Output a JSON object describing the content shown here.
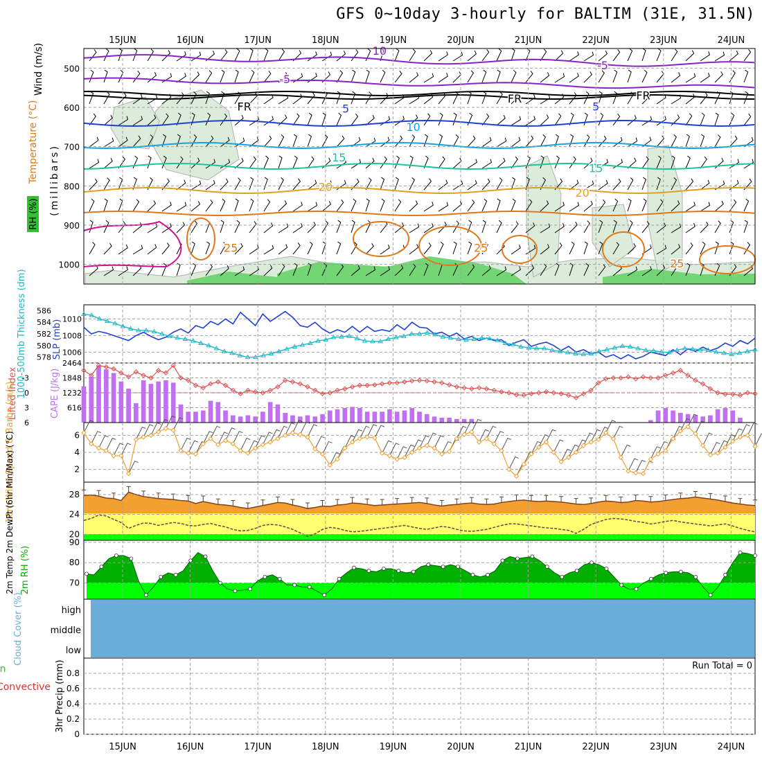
{
  "title": "GFS 0~10day 3-hourly for BALTIM (31E, 31.5N)",
  "date_labels": [
    "15JUN",
    "16JUN",
    "17JUN",
    "18JUN",
    "19JUN",
    "20JUN",
    "21JUN",
    "22JUN",
    "23JUN",
    "24JUN"
  ],
  "colors": {
    "rh_fill": "#7fbf7f",
    "temp_purple": "#8a22c2",
    "temp_blue": "#2040d0",
    "temp_cyan": "#1aa0e0",
    "temp_teal": "#1fc39b",
    "temp_gold": "#e0a020",
    "temp_orange": "#e07818",
    "temp_magenta": "#d01090",
    "slp": "#2040d0",
    "thickness": "#20b8c8",
    "lifted": "#e05050",
    "cape": "#c070f0",
    "wind10m": "#f0a030",
    "temp2m": "#f4a030",
    "dewpt": "#ffff70",
    "rh2m_dark": "#00b000",
    "rh2m_light": "#00ff00",
    "cloud": "#6aaed8",
    "green_label": "#30c030"
  },
  "chart_data": [
    {
      "type": "contour",
      "panel": "upper_air",
      "ylabel_wind": "Wind (m/s)",
      "ylabel_temp": "Temperature (°C)",
      "ylabel_rh": "RH (%)",
      "ylabel_pressure": "(millibars)",
      "y_ticks": [
        500,
        600,
        700,
        800,
        900,
        1000
      ],
      "ylim": [
        450,
        1050
      ],
      "contour_labels": [
        {
          "text": "10",
          "day": 3.8,
          "p": 458,
          "color": "temp_purple"
        },
        {
          "text": "-5",
          "day": 2.4,
          "p": 530,
          "color": "temp_purple"
        },
        {
          "text": "-5",
          "day": 7.1,
          "p": 495,
          "color": "temp_purple"
        },
        {
          "text": "FR",
          "day": 1.8,
          "p": 600,
          "color": "#000000"
        },
        {
          "text": "FR",
          "day": 5.8,
          "p": 580,
          "color": "#000000"
        },
        {
          "text": "FR",
          "day": 7.7,
          "p": 572,
          "color": "#000000"
        },
        {
          "text": "5",
          "day": 3.3,
          "p": 605,
          "color": "temp_blue"
        },
        {
          "text": "5",
          "day": 7.0,
          "p": 600,
          "color": "temp_blue"
        },
        {
          "text": "10",
          "day": 4.3,
          "p": 652,
          "color": "temp_cyan"
        },
        {
          "text": "15",
          "day": 3.2,
          "p": 730,
          "color": "temp_teal"
        },
        {
          "text": "15",
          "day": 7.0,
          "p": 757,
          "color": "temp_teal"
        },
        {
          "text": "20",
          "day": 3.0,
          "p": 805,
          "color": "temp_gold"
        },
        {
          "text": "20",
          "day": 6.8,
          "p": 820,
          "color": "temp_gold"
        },
        {
          "text": "25",
          "day": 1.6,
          "p": 960,
          "color": "temp_orange"
        },
        {
          "text": "25",
          "day": 5.3,
          "p": 960,
          "color": "temp_orange"
        },
        {
          "text": "25",
          "day": 8.2,
          "p": 1000,
          "color": "temp_orange"
        }
      ]
    },
    {
      "type": "line",
      "panel": "slp_thickness",
      "ylabel_thick": "1000-500mb Thickness (dm)",
      "ylabel_slp": "SLP (mb)",
      "thick_ticks": [
        578,
        580,
        582,
        584,
        586
      ],
      "slp_ticks": [
        1006,
        1008,
        1010
      ],
      "thick_lim": [
        577,
        587
      ],
      "slp_lim": [
        1004.7,
        1011.7
      ],
      "series": [
        {
          "key": "slp",
          "values": [
            1009.0,
            1008.2,
            1008.5,
            1008.3,
            1008.0,
            1007.7,
            1007.4,
            1008.0,
            1008.4,
            1007.9,
            1007.5,
            1007.8,
            1008.4,
            1008.8,
            1008.3,
            1009.2,
            1008.9,
            1009.7,
            1009.3,
            1010.0,
            1009.4,
            1010.8,
            1010.0,
            1009.2,
            1010.6,
            1009.7,
            1010.3,
            1010.9,
            1010.2,
            1009.2,
            1009.0,
            1009.6,
            1008.8,
            1008.3,
            1008.7,
            1008.4,
            1009.1,
            1008.4,
            1009.1,
            1008.5,
            1008.7,
            1008.5,
            1009.3,
            1008.7,
            1009.6,
            1009.0,
            1008.9,
            1008.2,
            1008.4,
            1007.9,
            1008.3,
            1007.6,
            1007.9,
            1007.4,
            1007.7,
            1007.4,
            1007.5,
            1006.8,
            1007.2,
            1007.5,
            1006.7,
            1007.0,
            1007.2,
            1006.8,
            1006.2,
            1006.7,
            1006.0,
            1006.3,
            1005.8,
            1006.0,
            1005.4,
            1005.7,
            1005.2,
            1005.7,
            1005.2,
            1005.5,
            1006.0,
            1005.8,
            1005.6,
            1006.3,
            1005.7,
            1006.4,
            1006.1,
            1006.6,
            1006.2,
            1006.5,
            1007.1,
            1006.7,
            1007.4,
            1007.0,
            1007.7
          ]
        },
        {
          "key": "thickness",
          "values": [
            585.4,
            585.2,
            584.6,
            584.2,
            583.8,
            583.3,
            582.9,
            582.6,
            582.6,
            582.4,
            582.0,
            581.6,
            581.3,
            581.1,
            580.8,
            580.4,
            580.0,
            579.5,
            579.0,
            578.7,
            578.3,
            578.0,
            578.0,
            578.3,
            578.6,
            579.0,
            579.4,
            579.8,
            580.1,
            580.4,
            580.8,
            581.0,
            581.4,
            581.5,
            581.6,
            581.2,
            580.8,
            580.7,
            580.7,
            581.1,
            581.4,
            581.6,
            582.0,
            582.0,
            582.2,
            581.9,
            581.5,
            581.3,
            581.1,
            581.0,
            581.1,
            581.3,
            581.2,
            580.9,
            580.4,
            580.2,
            579.8,
            579.6,
            579.5,
            579.5,
            579.2,
            579.0,
            578.8,
            578.6,
            578.5,
            578.6,
            579.0,
            579.3,
            579.6,
            579.9,
            579.8,
            579.5,
            579.2,
            579.1,
            578.9,
            578.8,
            579.2,
            579.5,
            579.4,
            579.3,
            579.2,
            578.9,
            578.7,
            578.5,
            578.7,
            579.0,
            579.3
          ]
        }
      ]
    },
    {
      "type": "bar",
      "panel": "lifted_cape",
      "ylabel_li": "Lifted Index",
      "ylabel_cape": "CAPE (J/kg)",
      "li_ticks": [
        "-3",
        "0",
        "3",
        "6"
      ],
      "cape_ticks": [
        616,
        1232,
        1848,
        2464
      ],
      "li_lim": [
        -6,
        6
      ],
      "cape_lim": [
        0,
        2464
      ],
      "cape_values": [
        1500,
        1900,
        2350,
        2200,
        2050,
        1700,
        1400,
        800,
        1750,
        1600,
        1700,
        1750,
        1650,
        750,
        450,
        450,
        500,
        900,
        850,
        500,
        300,
        250,
        300,
        250,
        450,
        850,
        750,
        400,
        300,
        250,
        300,
        250,
        350,
        500,
        550,
        600,
        650,
        600,
        450,
        450,
        450,
        550,
        450,
        500,
        600,
        450,
        350,
        250,
        200,
        200,
        150,
        150,
        150,
        0,
        0,
        0,
        0,
        0,
        0,
        0,
        0,
        0,
        0,
        0,
        0,
        0,
        0,
        0,
        0,
        0,
        0,
        0,
        0,
        0,
        0,
        0,
        100,
        500,
        600,
        500,
        400,
        350,
        300,
        250,
        300,
        550,
        600,
        500,
        200,
        0
      ],
      "li_values": [
        -4.5,
        -3.5,
        -5.5,
        -5.2,
        -4.8,
        -4.0,
        -3.2,
        -4.2,
        -3.5,
        -3.0,
        -4.5,
        -4.0,
        -5.5,
        -3.0,
        -2.5,
        -1.5,
        -1.0,
        -1.8,
        -2.2,
        -1.5,
        -0.5,
        0.2,
        -0.5,
        -0.2,
        0.0,
        -0.5,
        -1.2,
        -2.5,
        -2.2,
        -1.8,
        -1.2,
        -0.5,
        0.2,
        0.0,
        -0.5,
        -0.8,
        -1.2,
        -1.5,
        -1.5,
        -1.6,
        -1.8,
        -2.0,
        -2.0,
        -2.2,
        -2.4,
        -2.5,
        -2.4,
        -2.2,
        -2.0,
        -1.6,
        -1.2,
        -1.0,
        -0.8,
        -1.0,
        -0.8,
        -0.5,
        -0.2,
        0.0,
        0.4,
        0.5,
        0.2,
        0.0,
        -0.2,
        0.0,
        0.2,
        0.5,
        1.0,
        0.2,
        -0.5,
        -2.0,
        -2.8,
        -3.0,
        -3.0,
        -3.2,
        -2.8,
        -3.2,
        -3.0,
        -3.0,
        -3.5,
        -4.0,
        -4.5,
        -3.5,
        -2.5,
        -1.8,
        -0.8,
        0.0,
        0.3,
        0.3,
        0.5,
        0.0,
        0.2
      ]
    },
    {
      "type": "line",
      "panel": "wind10m",
      "ylabel": "10m Wind Speed & Barbs (m/s)",
      "y_ticks": [
        2,
        4,
        6
      ],
      "ylim": [
        0.5,
        7.5
      ],
      "values": [
        6.3,
        5.0,
        4.5,
        4.2,
        3.6,
        3.6,
        1.5,
        5.5,
        5.8,
        6.0,
        6.4,
        6.8,
        6.6,
        4.2,
        3.9,
        3.8,
        5.0,
        5.6,
        4.9,
        5.4,
        5.0,
        4.2,
        3.9,
        4.5,
        4.9,
        5.2,
        5.6,
        6.0,
        6.3,
        6.1,
        5.8,
        4.4,
        3.8,
        2.5,
        3.2,
        4.5,
        5.2,
        5.6,
        5.8,
        5.7,
        3.9,
        3.6,
        3.2,
        3.4,
        4.0,
        4.5,
        4.8,
        4.5,
        3.8,
        4.1,
        5.6,
        6.1,
        6.4,
        5.2,
        5.6,
        5.0,
        4.2,
        2.0,
        1.2,
        2.6,
        3.8,
        4.6,
        5.2,
        4.0,
        2.9,
        3.4,
        4.0,
        4.8,
        5.2,
        5.5,
        6.3,
        5.6,
        3.4,
        1.8,
        1.6,
        1.5,
        3.2,
        3.8,
        4.2,
        5.6,
        6.5,
        7.0,
        6.2,
        4.8,
        3.7,
        3.9,
        4.6,
        5.3,
        5.8,
        6.0,
        4.7
      ]
    },
    {
      "type": "area",
      "panel": "temp2m",
      "ylabel": "2m Temp 2m DewPt (6hr Min/Max) (°C)",
      "y_ticks": [
        20,
        24,
        28
      ],
      "ylim": [
        18.8,
        30.5
      ],
      "temp_values": [
        27.8,
        27.9,
        27.7,
        27.3,
        27.2,
        26.8,
        28.5,
        28.0,
        27.6,
        27.4,
        27.2,
        27.1,
        27.0,
        26.8,
        26.7,
        26.2,
        26.6,
        26.3,
        26.0,
        25.9,
        25.7,
        25.4,
        25.2,
        25.5,
        25.8,
        26.1,
        26.4,
        26.3,
        25.9,
        25.6,
        25.2,
        25.4,
        25.7,
        25.6,
        25.9,
        26.0,
        26.3,
        26.2,
        26.0,
        25.8,
        25.9,
        26.0,
        26.1,
        26.2,
        26.3,
        26.4,
        26.2,
        25.9,
        25.7,
        25.9,
        26.0,
        26.2,
        26.3,
        26.1,
        26.0,
        26.1,
        26.4,
        26.6,
        26.8,
        26.9,
        26.7,
        26.6,
        26.7,
        26.6,
        26.5,
        26.3,
        26.1,
        26.0,
        26.2,
        26.5,
        26.7,
        26.6,
        26.4,
        26.5,
        26.8,
        26.7,
        26.5,
        26.6,
        26.8,
        27.0,
        27.2,
        27.3,
        27.5,
        27.3,
        27.1,
        26.9,
        26.6,
        26.3,
        26.1,
        25.9,
        25.8
      ],
      "dew_values": [
        22.8,
        23.2,
        23.9,
        23.7,
        23.0,
        22.4,
        21.2,
        21.8,
        22.3,
        22.2,
        21.8,
        22.1,
        22.4,
        22.2,
        21.8,
        21.7,
        22.0,
        22.2,
        21.8,
        21.5,
        21.0,
        20.7,
        20.8,
        21.2,
        21.8,
        22.0,
        21.9,
        21.5,
        21.0,
        20.3,
        19.6,
        20.1,
        21.0,
        21.4,
        21.2,
        20.8,
        20.5,
        20.6,
        20.8,
        21.0,
        21.2,
        21.4,
        21.6,
        21.8,
        21.5,
        21.2,
        21.0,
        21.3,
        21.6,
        21.4,
        21.0,
        20.7,
        20.6,
        20.8,
        21.0,
        21.4,
        21.8,
        22.1,
        22.1,
        21.9,
        21.7,
        21.5,
        21.3,
        21.2,
        21.0,
        20.8,
        20.2,
        21.0,
        22.0,
        22.5,
        23.0,
        23.2,
        23.1,
        22.9,
        22.6,
        22.4,
        22.1,
        22.3,
        22.6,
        22.8,
        22.5,
        22.3,
        22.1,
        21.9,
        21.7,
        21.9,
        22.1,
        21.7,
        21.2,
        20.8,
        20.5
      ]
    },
    {
      "type": "area",
      "panel": "rh2m",
      "ylabel": "2m RH (%)",
      "y_ticks": [
        70,
        80,
        90
      ],
      "ylim": [
        62,
        91
      ],
      "values": [
        74.5,
        74,
        78,
        82,
        83.5,
        83.5,
        82,
        71,
        64,
        68,
        73,
        75,
        74,
        76,
        81,
        85,
        83,
        76,
        70,
        67,
        66,
        66.5,
        67,
        71,
        73,
        74,
        72,
        69,
        69,
        68,
        68,
        66,
        64,
        67,
        72,
        75,
        77.5,
        77,
        76,
        75.5,
        77,
        77,
        76,
        75,
        75.5,
        78,
        79,
        78.5,
        78,
        79,
        78,
        76,
        74,
        73,
        74,
        76,
        81,
        83,
        82,
        82.5,
        83,
        81,
        78,
        75,
        73,
        75,
        76,
        79,
        80,
        79,
        77,
        73,
        69,
        67,
        67,
        70,
        72,
        74,
        75,
        75.5,
        75.5,
        75,
        73,
        68,
        64,
        68,
        74,
        80,
        85,
        84.5,
        83.5
      ]
    },
    {
      "type": "table",
      "panel": "cloud",
      "ylabel": "Cloud Cover (%)",
      "levels": [
        "high",
        "middle",
        "low"
      ]
    },
    {
      "type": "line",
      "panel": "precip",
      "ylabel_a": "Total / Rain",
      "ylabel_b": "Convective",
      "ylabel": "3hr Precip (mm)",
      "y_ticks": [
        "0",
        "0.2",
        "0.4",
        "0.6",
        "0.8"
      ],
      "ylim": [
        0,
        1
      ],
      "annotation": "Run Total = 0"
    }
  ]
}
